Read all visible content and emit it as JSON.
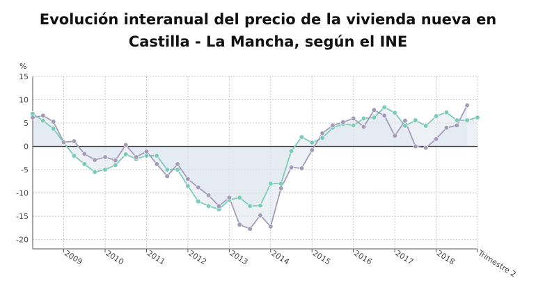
{
  "title_lines": [
    "Evolución interanual del precio de la vivienda nueva en",
    "Castilla - La Mancha, según el INE"
  ],
  "colors": {
    "series_teal": "#7ccbb9",
    "series_purple": "#a39cb8",
    "area_fill": "#dfe6ee",
    "grid": "#c8c8c8",
    "zero_line": "#333333"
  },
  "chart_data": {
    "type": "line",
    "title": "Evolución interanual del precio de la vivienda nueva en Castilla - La Mancha, según el INE",
    "ylabel": "%",
    "xlabel": "",
    "ylim": [
      -22,
      15
    ],
    "yticks": [
      15,
      10,
      5,
      0,
      -5,
      -10,
      -15,
      -20
    ],
    "x_tick_labels": [
      "2009",
      "2010",
      "2011",
      "2012",
      "2013",
      "2014",
      "2015",
      "2016",
      "2017",
      "2018",
      "Trimestre 2"
    ],
    "grid": true,
    "legend": "none",
    "series": [
      {
        "color": "#7ccbb9",
        "values": [
          7.0,
          5.5,
          3.8,
          0.8,
          -2.0,
          -3.8,
          -5.5,
          -5.0,
          -4.0,
          -1.7,
          -2.7,
          -2.0,
          -2.0,
          -5.0,
          -5.0,
          -8.5,
          -11.8,
          -12.8,
          -13.5,
          -11.5,
          -11.0,
          -12.8,
          -12.7,
          -8.0,
          -8.0,
          -1.0,
          2.0,
          0.8,
          1.8,
          4.0,
          4.8,
          4.5,
          6.0,
          6.2,
          8.4,
          7.2,
          4.4,
          5.6,
          4.4,
          6.5,
          7.3,
          5.6,
          5.6,
          6.2
        ]
      },
      {
        "color": "#a39cb8",
        "values": [
          6.2,
          6.6,
          5.3,
          0.9,
          1.1,
          -1.6,
          -2.9,
          -2.3,
          -3.0,
          0.3,
          -2.3,
          -1.1,
          -3.8,
          -6.4,
          -3.8,
          -7.0,
          -8.8,
          -10.5,
          -12.8,
          -11.0,
          -16.8,
          -17.7,
          -14.8,
          -17.2,
          -9.0,
          -4.5,
          -4.7,
          -0.8,
          2.8,
          4.5,
          5.2,
          6.0,
          4.2,
          7.8,
          6.6,
          2.3,
          5.5,
          0.0,
          -0.3,
          1.6,
          4.0,
          4.5,
          8.8
        ]
      }
    ]
  }
}
